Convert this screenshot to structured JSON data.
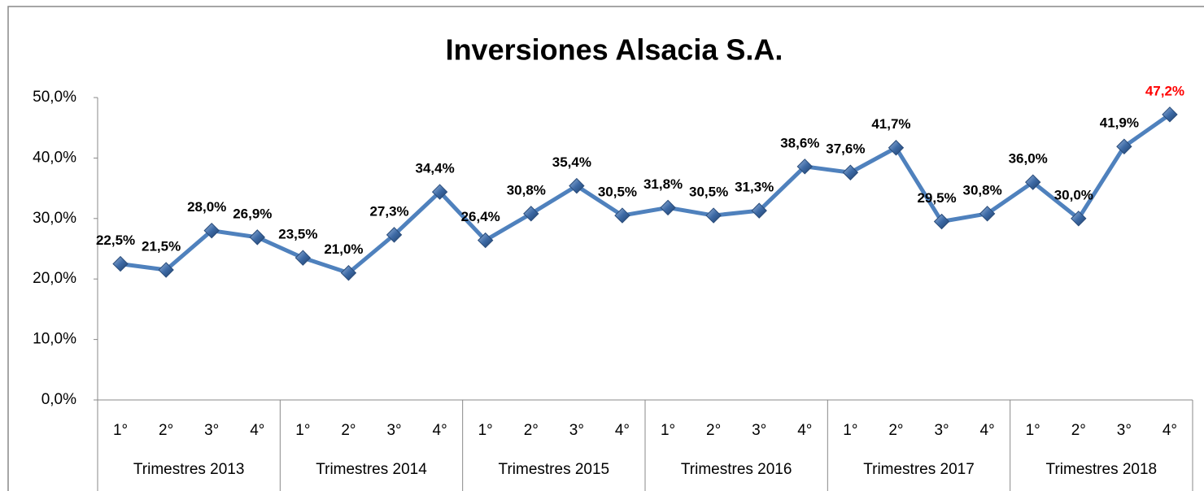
{
  "chart_data": {
    "type": "line",
    "title": "Inversiones Alsacia S.A.",
    "categories": [
      "1°",
      "2°",
      "3°",
      "4°",
      "1°",
      "2°",
      "3°",
      "4°",
      "1°",
      "2°",
      "3°",
      "4°",
      "1°",
      "2°",
      "3°",
      "4°",
      "1°",
      "2°",
      "3°",
      "4°",
      "1°",
      "2°",
      "3°",
      "4°"
    ],
    "groups": [
      "Trimestres 2013",
      "Trimestres 2014",
      "Trimestres 2015",
      "Trimestres 2016",
      "Trimestres 2017",
      "Trimestres 2018"
    ],
    "values": [
      22.5,
      21.5,
      28.0,
      26.9,
      23.5,
      21.0,
      27.3,
      34.4,
      26.4,
      30.8,
      35.4,
      30.5,
      31.8,
      30.5,
      31.3,
      38.6,
      37.6,
      41.7,
      29.5,
      30.8,
      36.0,
      30.0,
      41.9,
      47.2
    ],
    "value_labels": [
      "22,5%",
      "21,5%",
      "28,0%",
      "26,9%",
      "23,5%",
      "21,0%",
      "27,3%",
      "34,4%",
      "26,4%",
      "30,8%",
      "35,4%",
      "30,5%",
      "31,8%",
      "30,5%",
      "31,3%",
      "38,6%",
      "37,6%",
      "41,7%",
      "29,5%",
      "30,8%",
      "36,0%",
      "30,0%",
      "41,9%",
      "47,2%"
    ],
    "color": "#4f81bd",
    "highlight": {
      "index": 23,
      "color": "#ff0000"
    },
    "ylim": [
      0,
      50
    ],
    "yticks": [
      {
        "value": 0,
        "label": "0,0%"
      },
      {
        "value": 10,
        "label": "10,0%"
      },
      {
        "value": 20,
        "label": "20,0%"
      },
      {
        "value": 30,
        "label": "30,0%"
      },
      {
        "value": 40,
        "label": "40,0%"
      },
      {
        "value": 50,
        "label": "50,0%"
      }
    ],
    "grid": false
  }
}
